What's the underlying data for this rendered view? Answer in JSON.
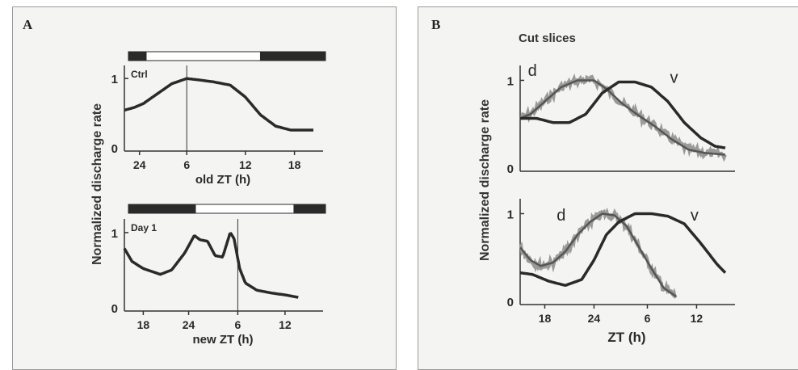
{
  "panels": {
    "A": {
      "letter": "A",
      "ylabel": "Normalized discharge rate"
    },
    "B": {
      "letter": "B",
      "title": "Cut slices",
      "ylabel": "Normalized discharge rate"
    }
  },
  "chart_data": [
    {
      "id": "A1",
      "type": "line",
      "panel": "A",
      "inset_label": "Ctrl",
      "xlabel": "old ZT (h)",
      "xticks": [
        "24",
        "6",
        "12",
        "18"
      ],
      "yticks": [
        "0",
        "1"
      ],
      "ylim": [
        0,
        1.1
      ],
      "light_bar": [
        "dark",
        "light",
        "dark"
      ],
      "vline_at": "6",
      "series": [
        {
          "x": [
            0,
            0.05,
            0.1,
            0.18,
            0.25,
            0.33,
            0.39,
            0.47,
            0.56,
            0.64,
            0.72,
            0.8,
            0.88,
            0.94,
            1.0
          ],
          "y": [
            0.52,
            0.56,
            0.62,
            0.78,
            0.92,
            1.0,
            0.98,
            0.95,
            0.9,
            0.72,
            0.45,
            0.28,
            0.22,
            0.22,
            0.22
          ]
        }
      ]
    },
    {
      "id": "A2",
      "type": "line",
      "panel": "A",
      "inset_label": "Day 1",
      "xlabel": "new ZT (h)",
      "xticks": [
        "18",
        "24",
        "6",
        "12"
      ],
      "yticks": [
        "0",
        "1"
      ],
      "ylim": [
        0,
        1.1
      ],
      "light_bar": [
        "dark",
        "light",
        "dark"
      ],
      "vline_at": "6",
      "series": [
        {
          "x": [
            0,
            0.04,
            0.1,
            0.19,
            0.25,
            0.32,
            0.37,
            0.4,
            0.44,
            0.48,
            0.52,
            0.56,
            0.58,
            0.61,
            0.64,
            0.7,
            0.78,
            0.86,
            0.92
          ],
          "y": [
            0.78,
            0.6,
            0.5,
            0.42,
            0.48,
            0.72,
            0.96,
            0.9,
            0.88,
            0.68,
            0.66,
            1.0,
            0.92,
            0.5,
            0.3,
            0.2,
            0.16,
            0.13,
            0.1
          ]
        }
      ]
    },
    {
      "id": "B1",
      "type": "line",
      "panel": "B",
      "xlabel": "",
      "xticks": [],
      "yticks": [
        "0",
        "1"
      ],
      "ylim": [
        0,
        1.1
      ],
      "annotations": [
        {
          "text": "d",
          "x": 0.06,
          "y": 1.05
        },
        {
          "text": "v",
          "x": 0.75,
          "y": 0.97
        }
      ],
      "series": [
        {
          "name": "d",
          "noisy": true,
          "x": [
            0,
            0.05,
            0.12,
            0.2,
            0.28,
            0.36,
            0.42,
            0.5,
            0.58,
            0.66,
            0.74,
            0.82,
            0.9,
            1.0
          ],
          "y": [
            0.55,
            0.6,
            0.75,
            0.92,
            1.0,
            1.0,
            0.9,
            0.72,
            0.58,
            0.45,
            0.3,
            0.18,
            0.14,
            0.12
          ]
        },
        {
          "name": "v",
          "noisy": false,
          "x": [
            0,
            0.08,
            0.16,
            0.24,
            0.32,
            0.4,
            0.48,
            0.56,
            0.64,
            0.72,
            0.8,
            0.88,
            0.95,
            1.0
          ],
          "y": [
            0.55,
            0.55,
            0.5,
            0.5,
            0.6,
            0.85,
            0.98,
            0.98,
            0.92,
            0.75,
            0.5,
            0.32,
            0.22,
            0.2
          ]
        }
      ]
    },
    {
      "id": "B2",
      "type": "line",
      "panel": "B",
      "xlabel": "ZT (h)",
      "xticks": [
        "18",
        "24",
        "6",
        "12"
      ],
      "yticks": [
        "0",
        "1"
      ],
      "ylim": [
        0,
        1.1
      ],
      "annotations": [
        {
          "text": "d",
          "x": 0.2,
          "y": 0.92
        },
        {
          "text": "v",
          "x": 0.85,
          "y": 0.92
        }
      ],
      "series": [
        {
          "name": "d",
          "noisy": true,
          "x": [
            0,
            0.05,
            0.1,
            0.16,
            0.22,
            0.28,
            0.34,
            0.4,
            0.46,
            0.52,
            0.58,
            0.64,
            0.7,
            0.76
          ],
          "y": [
            0.6,
            0.45,
            0.38,
            0.42,
            0.55,
            0.75,
            0.9,
            1.0,
            0.98,
            0.85,
            0.6,
            0.35,
            0.12,
            0.02
          ]
        },
        {
          "name": "v",
          "noisy": false,
          "x": [
            0,
            0.06,
            0.14,
            0.22,
            0.3,
            0.36,
            0.42,
            0.48,
            0.56,
            0.64,
            0.72,
            0.8,
            0.88,
            0.96,
            1.0
          ],
          "y": [
            0.3,
            0.28,
            0.2,
            0.15,
            0.22,
            0.45,
            0.75,
            0.9,
            1.0,
            1.0,
            0.97,
            0.88,
            0.65,
            0.4,
            0.3
          ]
        }
      ]
    }
  ]
}
